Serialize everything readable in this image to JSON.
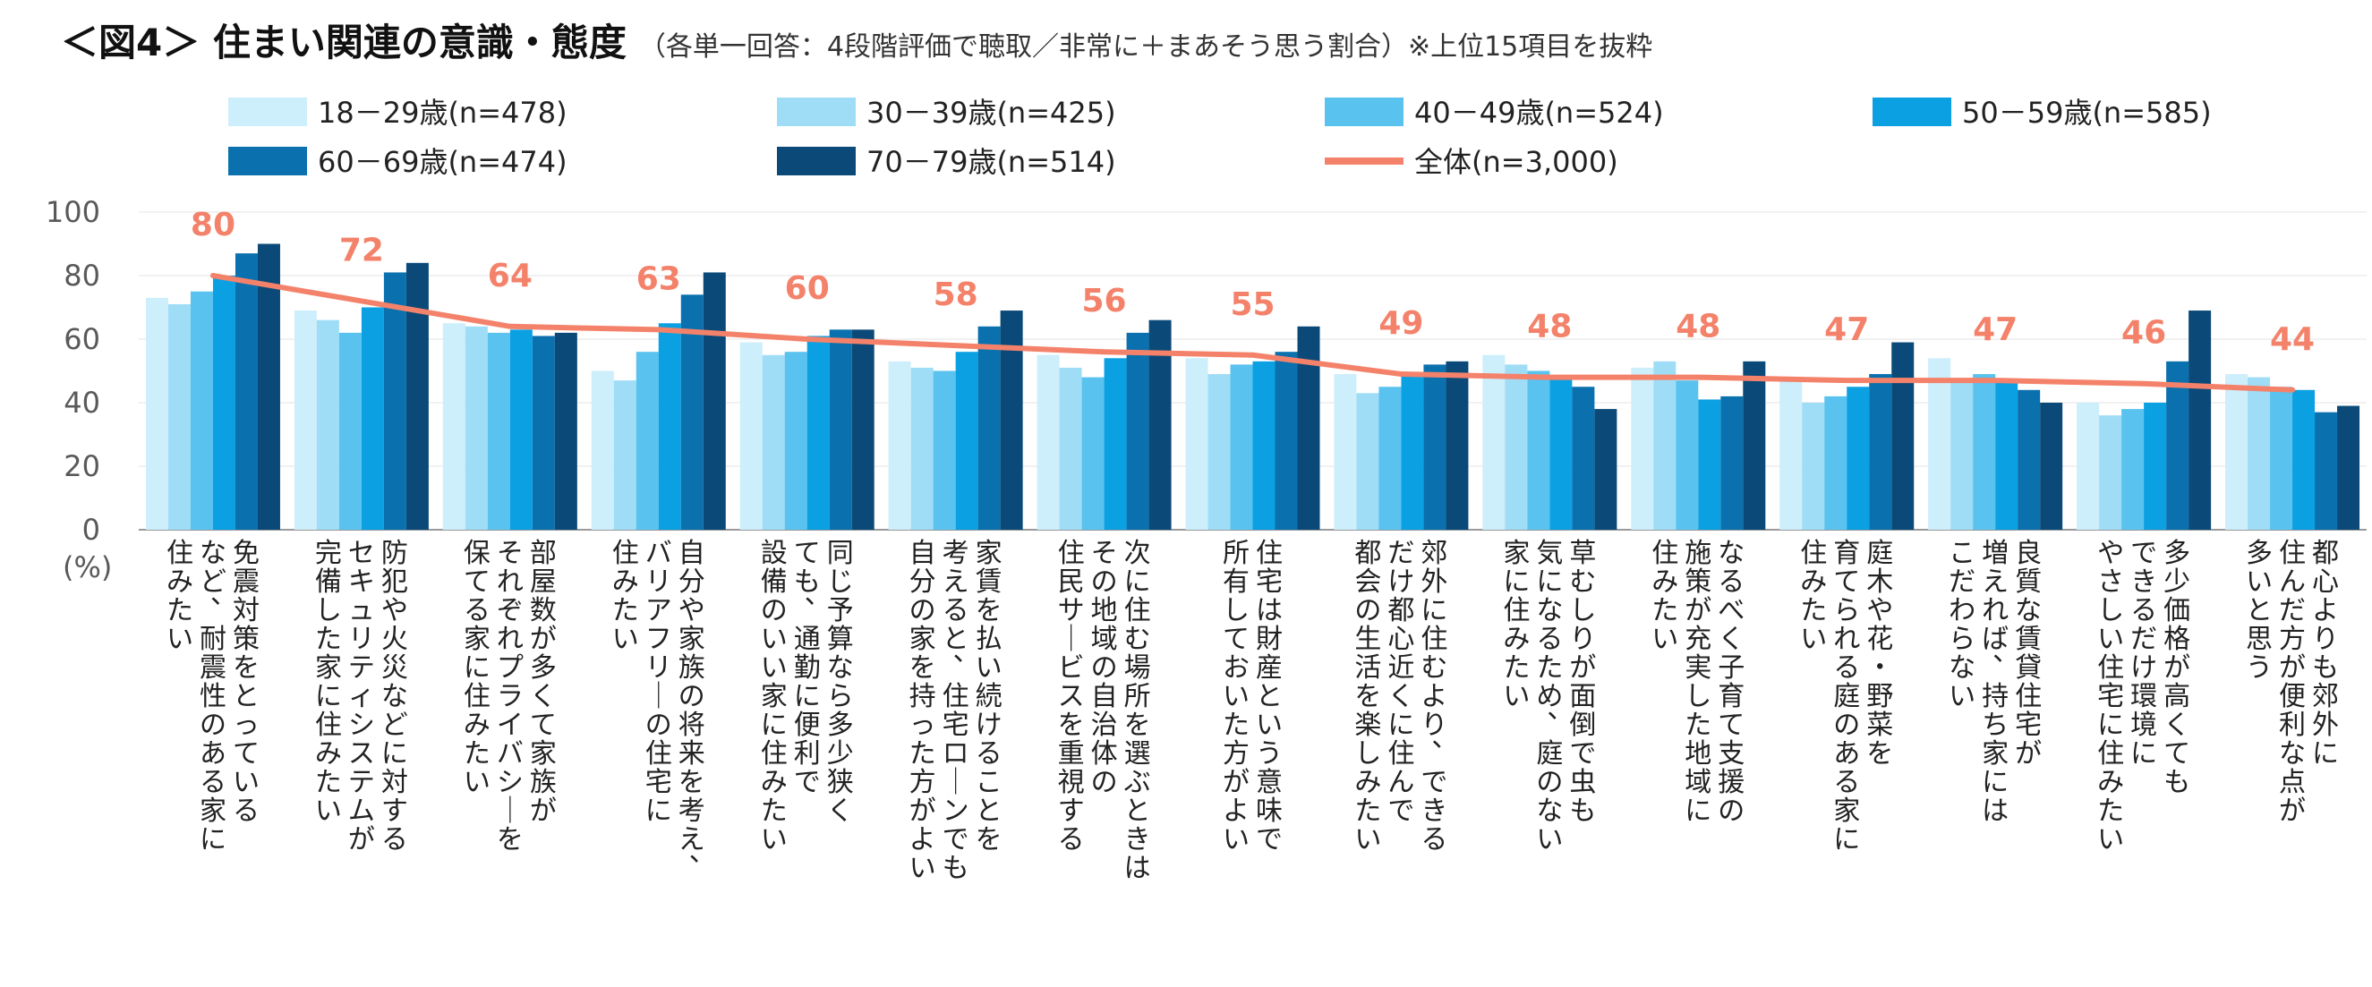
{
  "title": "＜図4＞ 住まい関連の意識・態度",
  "subtitle": "（各単一回答：4段階評価で聴取／非常に＋まあそう思う割合）※上位15項目を抜粋",
  "chart_data": {
    "type": "bar",
    "ylim": [
      0,
      100
    ],
    "yticks": [
      "100",
      "80",
      "60",
      "40",
      "20",
      "0"
    ],
    "yunit": "(%)",
    "legend_position": "top",
    "categories": [
      [
        "免震対策をとっている",
        "など、耐震性のある家に",
        "住みたい"
      ],
      [
        "防犯や火災などに対する",
        "セキュリティシステムが",
        "完備した家に住みたい"
      ],
      [
        "部屋数が多くて家族が",
        "それぞれプライバシーを",
        "保てる家に住みたい"
      ],
      [
        "自分や家族の将来を考え、",
        "バリアフリーの住宅に",
        "住みたい"
      ],
      [
        "同じ予算なら多少狭く",
        "ても、通勤に便利で",
        "設備のいい家に住みたい"
      ],
      [
        "家賃を払い続けることを",
        "考えると、住宅ローンでも",
        "自分の家を持った方がよい"
      ],
      [
        "次に住む場所を選ぶときは",
        "その地域の自治体の",
        "住民サービスを重視する"
      ],
      [
        "住宅は財産という意味で",
        "所有しておいた方がよい"
      ],
      [
        "郊外に住むより、できる",
        "だけ都心近くに住んで",
        "都会の生活を楽しみたい"
      ],
      [
        "草むしりが面倒で虫も",
        "気になるため、庭のない",
        "家に住みたい"
      ],
      [
        "なるべく子育て支援の",
        "施策が充実した地域に",
        "住みたい"
      ],
      [
        "庭木や花・野菜を",
        "育てられる庭のある家に",
        "住みたい"
      ],
      [
        "良質な賃貸住宅が",
        "増えれば、持ち家には",
        "こだわらない"
      ],
      [
        "多少価格が高くても",
        "できるだけ環境に",
        "やさしい住宅に住みたい"
      ],
      [
        "都心よりも郊外に",
        "住んだ方が便利な点が",
        "多いと思う"
      ]
    ],
    "series": [
      {
        "name": "18－29歳(n=478)",
        "color": "#CDEEFB",
        "values": [
          73,
          69,
          65,
          50,
          59,
          53,
          55,
          54,
          49,
          55,
          51,
          47,
          54,
          40,
          49
        ]
      },
      {
        "name": "30－39歳(n=425)",
        "color": "#9FDDF7",
        "values": [
          71,
          66,
          64,
          47,
          55,
          51,
          51,
          49,
          43,
          52,
          53,
          40,
          47,
          36,
          48
        ]
      },
      {
        "name": "40－49歳(n=524)",
        "color": "#59C2EF",
        "values": [
          75,
          62,
          62,
          56,
          56,
          50,
          48,
          52,
          45,
          50,
          47,
          42,
          49,
          38,
          45
        ]
      },
      {
        "name": "50－59歳(n=585)",
        "color": "#0AA0E2",
        "values": [
          80,
          70,
          63,
          65,
          61,
          56,
          54,
          53,
          49,
          48,
          41,
          45,
          47,
          40,
          44
        ]
      },
      {
        "name": "60－69歳(n=474)",
        "color": "#0A70AE",
        "values": [
          87,
          81,
          61,
          74,
          63,
          64,
          62,
          56,
          52,
          45,
          42,
          49,
          44,
          53,
          37
        ]
      },
      {
        "name": "70－79歳(n=514)",
        "color": "#0B4A78",
        "values": [
          90,
          84,
          62,
          81,
          63,
          69,
          66,
          64,
          53,
          38,
          53,
          59,
          40,
          69,
          39
        ]
      }
    ],
    "overall": {
      "name": "全体(n=3,000)",
      "color": "#F4826A",
      "values": [
        80,
        72,
        64,
        63,
        60,
        58,
        56,
        55,
        49,
        48,
        48,
        47,
        47,
        46,
        44
      ],
      "labels": [
        "80",
        "72",
        "64",
        "63",
        "60",
        "58",
        "56",
        "55",
        "49",
        "48",
        "48",
        "47",
        "47",
        "46",
        "44"
      ]
    }
  }
}
